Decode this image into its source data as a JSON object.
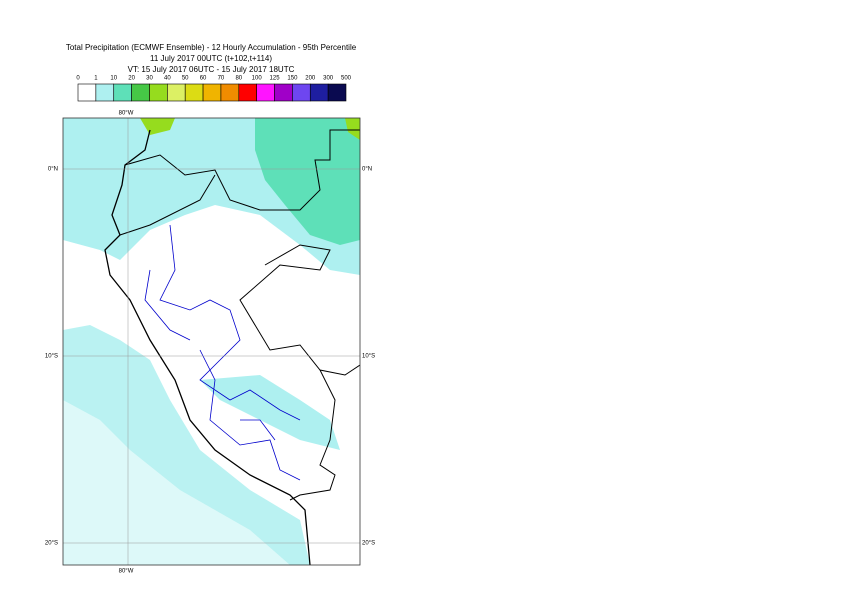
{
  "header": {
    "title": "Total Precipitation (ECMWF Ensemble) - 12 Hourly Accumulation - 95th Percentile",
    "run": "11 July 2017 00UTC (t+102,t+114)",
    "valid": "VT: 15 July 2017 06UTC - 15 July 2017 18UTC"
  },
  "legend": {
    "ticks": [
      0,
      1,
      10,
      20,
      30,
      40,
      50,
      60,
      70,
      80,
      100,
      125,
      150,
      200,
      300,
      500
    ],
    "colors": [
      "#ffffff",
      "#aef0f0",
      "#5ee0b8",
      "#46c846",
      "#96dc1e",
      "#dcf064",
      "#dcdc14",
      "#f0b400",
      "#f08c00",
      "#ff0000",
      "#ff14ff",
      "#a000c8",
      "#6e46f0",
      "#1e1ea0",
      "#0a0a50"
    ]
  },
  "map": {
    "lon_label": "80°W",
    "lat_labels": [
      "0°N",
      "10°S",
      "20°S"
    ]
  }
}
